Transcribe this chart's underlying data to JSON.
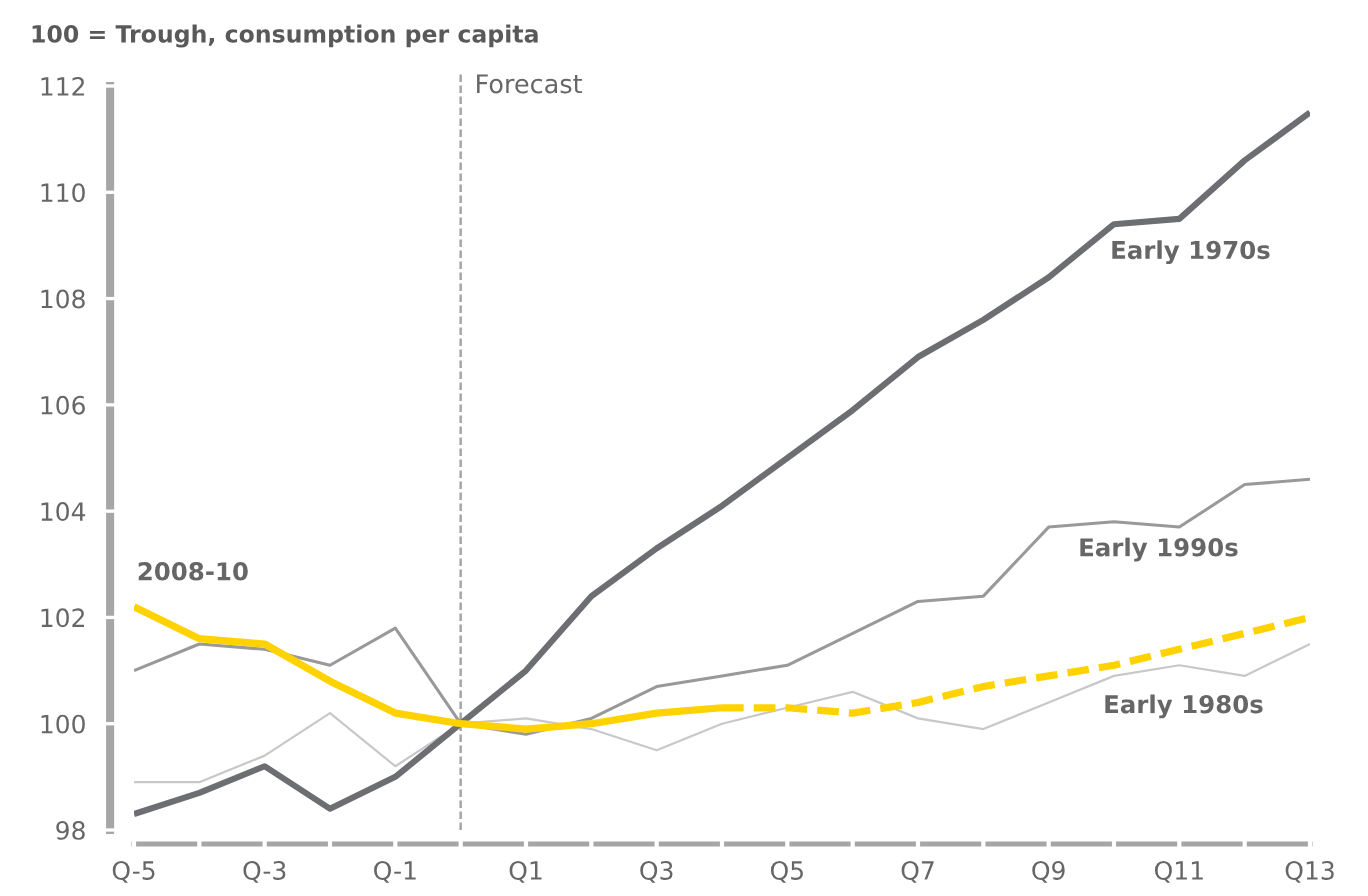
{
  "chart_data": {
    "type": "line",
    "title": "100 = Trough, consumption per capita",
    "categories": [
      "Q-5",
      null,
      "Q-3",
      null,
      "Q-1",
      null,
      "Q1",
      null,
      "Q3",
      null,
      "Q5",
      null,
      "Q7",
      null,
      "Q9",
      null,
      "Q11",
      null,
      "Q13"
    ],
    "ylim": [
      98,
      112
    ],
    "yticks": [
      98,
      100,
      102,
      104,
      106,
      108,
      110,
      112
    ],
    "annotations": [
      "Forecast"
    ],
    "series": [
      {
        "name": "Early 1970s",
        "color": "#6d6e71",
        "values": [
          98.3,
          98.7,
          99.2,
          98.4,
          99.0,
          100,
          101.0,
          102.4,
          103.3,
          104.1,
          105.0,
          105.9,
          106.9,
          107.6,
          108.4,
          109.4,
          109.5,
          110.6,
          111.5
        ]
      },
      {
        "name": "Early 1990s",
        "color": "#999999",
        "values": [
          101.0,
          101.5,
          101.4,
          101.1,
          101.8,
          100,
          99.8,
          100.1,
          100.7,
          100.9,
          101.1,
          101.7,
          102.3,
          102.4,
          103.7,
          103.8,
          103.7,
          104.5,
          104.6
        ]
      },
      {
        "name": "Early 1980s",
        "color": "#c8c8c8",
        "values": [
          98.9,
          98.9,
          99.4,
          100.2,
          99.2,
          100,
          100.1,
          99.9,
          99.5,
          100.0,
          100.3,
          100.6,
          100.1,
          99.9,
          100.4,
          100.9,
          101.1,
          100.9,
          101.5
        ]
      },
      {
        "name": "2008-10",
        "color": "#ffd200",
        "values": [
          102.2,
          101.6,
          101.5,
          100.8,
          100.2,
          100.0,
          99.9,
          100.0,
          100.2,
          100.3,
          null,
          null,
          null,
          null,
          null,
          null,
          null,
          null,
          null
        ]
      },
      {
        "color": "#ffd200",
        "line_style": "dashed",
        "values": [
          null,
          null,
          null,
          null,
          null,
          null,
          null,
          null,
          null,
          100.3,
          100.3,
          100.2,
          100.4,
          100.7,
          100.9,
          101.1,
          101.4,
          101.7,
          102.0
        ]
      }
    ]
  }
}
